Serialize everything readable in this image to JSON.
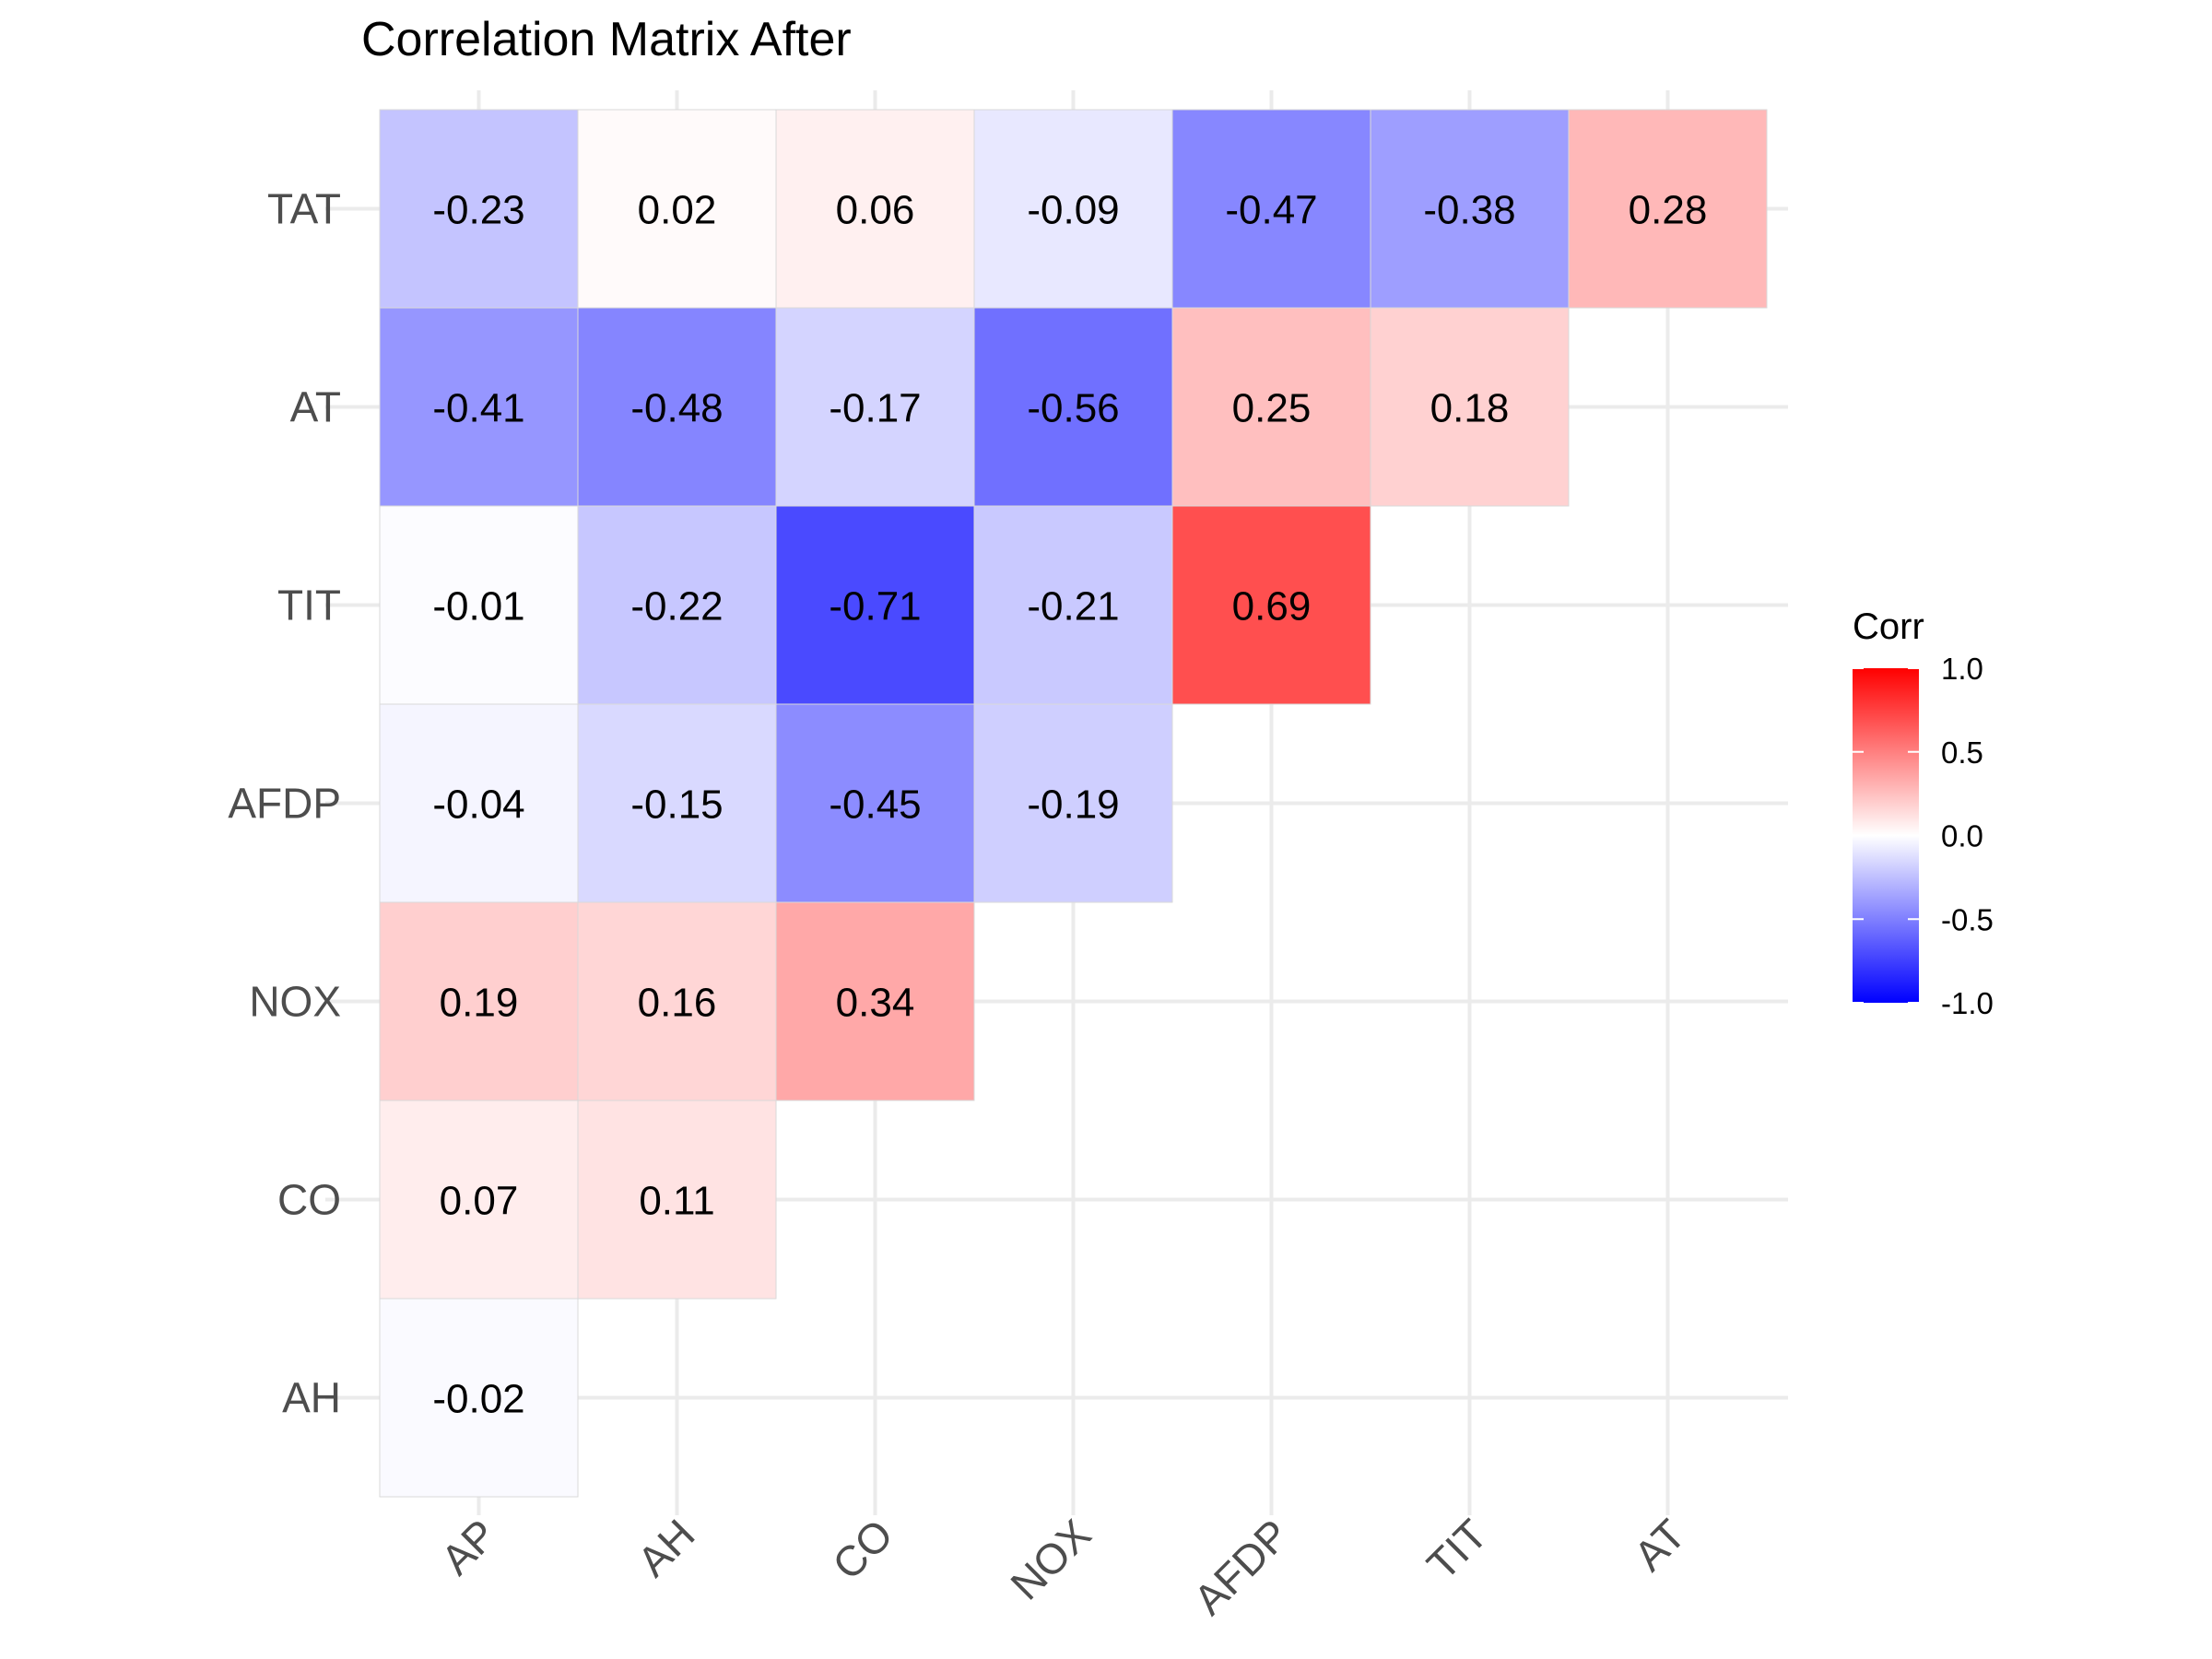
{
  "chart_data": {
    "type": "heatmap",
    "title": "Correlation Matrix After",
    "x_categories": [
      "AP",
      "AH",
      "CO",
      "NOX",
      "AFDP",
      "TIT",
      "AT"
    ],
    "y_categories": [
      "TAT",
      "AT",
      "TIT",
      "AFDP",
      "NOX",
      "CO",
      "AH"
    ],
    "cells": [
      {
        "row": "TAT",
        "col": "AP",
        "value": -0.23,
        "label": "-0.23"
      },
      {
        "row": "TAT",
        "col": "AH",
        "value": 0.02,
        "label": "0.02"
      },
      {
        "row": "TAT",
        "col": "CO",
        "value": 0.06,
        "label": "0.06"
      },
      {
        "row": "TAT",
        "col": "NOX",
        "value": -0.09,
        "label": "-0.09"
      },
      {
        "row": "TAT",
        "col": "AFDP",
        "value": -0.47,
        "label": "-0.47"
      },
      {
        "row": "TAT",
        "col": "TIT",
        "value": -0.38,
        "label": "-0.38"
      },
      {
        "row": "TAT",
        "col": "AT",
        "value": 0.28,
        "label": "0.28"
      },
      {
        "row": "AT",
        "col": "AP",
        "value": -0.41,
        "label": "-0.41"
      },
      {
        "row": "AT",
        "col": "AH",
        "value": -0.48,
        "label": "-0.48"
      },
      {
        "row": "AT",
        "col": "CO",
        "value": -0.17,
        "label": "-0.17"
      },
      {
        "row": "AT",
        "col": "NOX",
        "value": -0.56,
        "label": "-0.56"
      },
      {
        "row": "AT",
        "col": "AFDP",
        "value": 0.25,
        "label": "0.25"
      },
      {
        "row": "AT",
        "col": "TIT",
        "value": 0.18,
        "label": "0.18"
      },
      {
        "row": "TIT",
        "col": "AP",
        "value": -0.01,
        "label": "-0.01"
      },
      {
        "row": "TIT",
        "col": "AH",
        "value": -0.22,
        "label": "-0.22"
      },
      {
        "row": "TIT",
        "col": "CO",
        "value": -0.71,
        "label": "-0.71"
      },
      {
        "row": "TIT",
        "col": "NOX",
        "value": -0.21,
        "label": "-0.21"
      },
      {
        "row": "TIT",
        "col": "AFDP",
        "value": 0.69,
        "label": "0.69"
      },
      {
        "row": "AFDP",
        "col": "AP",
        "value": -0.04,
        "label": "-0.04"
      },
      {
        "row": "AFDP",
        "col": "AH",
        "value": -0.15,
        "label": "-0.15"
      },
      {
        "row": "AFDP",
        "col": "CO",
        "value": -0.45,
        "label": "-0.45"
      },
      {
        "row": "AFDP",
        "col": "NOX",
        "value": -0.19,
        "label": "-0.19"
      },
      {
        "row": "NOX",
        "col": "AP",
        "value": 0.19,
        "label": "0.19"
      },
      {
        "row": "NOX",
        "col": "AH",
        "value": 0.16,
        "label": "0.16"
      },
      {
        "row": "NOX",
        "col": "CO",
        "value": 0.34,
        "label": "0.34"
      },
      {
        "row": "CO",
        "col": "AP",
        "value": 0.07,
        "label": "0.07"
      },
      {
        "row": "CO",
        "col": "AH",
        "value": 0.11,
        "label": "0.11"
      },
      {
        "row": "AH",
        "col": "AP",
        "value": -0.02,
        "label": "-0.02"
      }
    ],
    "legend": {
      "title": "Corr",
      "placement": "right",
      "range": [
        -1,
        1
      ],
      "ticks": [
        {
          "value": 1.0,
          "label": "1.0"
        },
        {
          "value": 0.5,
          "label": "0.5"
        },
        {
          "value": 0.0,
          "label": "0.0"
        },
        {
          "value": -0.5,
          "label": "-0.5"
        },
        {
          "value": -1.0,
          "label": "-1.0"
        }
      ]
    },
    "colors": {
      "low": "#0000ff",
      "mid": "#ffffff",
      "high": "#ff0000"
    },
    "grid": true
  }
}
